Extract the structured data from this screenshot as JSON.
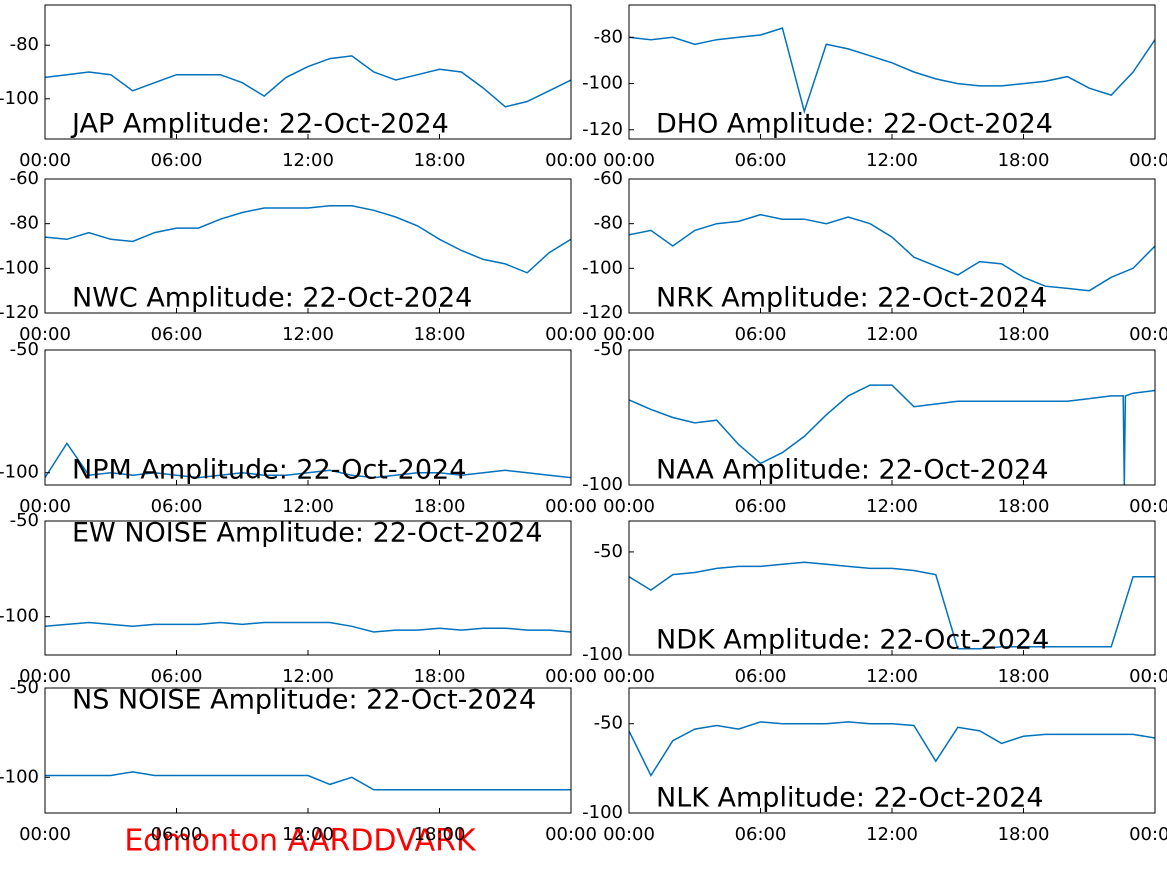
{
  "chart_data": [
    {
      "type": "line",
      "title": "JAP Amplitude: 22-Oct-2024",
      "label_corner": "lower left",
      "color": "#0072bd",
      "x": [
        0,
        1,
        2,
        3,
        4,
        5,
        6,
        7,
        8,
        9,
        10,
        11,
        12,
        13,
        14,
        15,
        16,
        17,
        18,
        19,
        20,
        21,
        22,
        23,
        24
      ],
      "values": [
        -92,
        -91,
        -90,
        -91,
        -97,
        -94,
        -91,
        -91,
        -91,
        -94,
        -99,
        -92,
        -88,
        -85,
        -84,
        -90,
        -93,
        -91,
        -89,
        -90,
        -96,
        -103,
        -101,
        -97,
        -93
      ],
      "xlim": [
        0,
        24
      ],
      "xticks": [
        {
          "value": 0,
          "label": "00:00"
        },
        {
          "value": 6,
          "label": "06:00"
        },
        {
          "value": 12,
          "label": "12:00"
        },
        {
          "value": 18,
          "label": "18:00"
        },
        {
          "value": 24,
          "label": "00:00"
        }
      ],
      "ylim": [
        -115,
        -65
      ],
      "yticks": [
        -100,
        -80
      ]
    },
    {
      "type": "line",
      "title": "DHO Amplitude: 22-Oct-2024",
      "label_corner": "lower left",
      "color": "#0072bd",
      "x": [
        0,
        1,
        2,
        3,
        4,
        5,
        6,
        7,
        8,
        9,
        10,
        11,
        12,
        13,
        14,
        15,
        16,
        17,
        18,
        19,
        20,
        21,
        22,
        23,
        24
      ],
      "values": [
        -80,
        -81,
        -80,
        -83,
        -81,
        -80,
        -79,
        -76,
        -112,
        -83,
        -85,
        -88,
        -91,
        -95,
        -98,
        -100,
        -101,
        -101,
        -100,
        -99,
        -97,
        -102,
        -105,
        -95,
        -81
      ],
      "xlim": [
        0,
        24
      ],
      "xticks": [
        {
          "value": 0,
          "label": "00:00"
        },
        {
          "value": 6,
          "label": "06:00"
        },
        {
          "value": 12,
          "label": "12:00"
        },
        {
          "value": 18,
          "label": "18:00"
        },
        {
          "value": 24,
          "label": "00:00"
        }
      ],
      "ylim": [
        -124,
        -66
      ],
      "yticks": [
        -120,
        -100,
        -80
      ]
    },
    {
      "type": "line",
      "title": "NWC Amplitude: 22-Oct-2024",
      "label_corner": "lower left",
      "color": "#0072bd",
      "x": [
        0,
        1,
        2,
        3,
        4,
        5,
        6,
        7,
        8,
        9,
        10,
        11,
        12,
        13,
        14,
        15,
        16,
        17,
        18,
        19,
        20,
        21,
        22,
        23,
        24
      ],
      "values": [
        -86,
        -87,
        -84,
        -87,
        -88,
        -84,
        -82,
        -82,
        -78,
        -75,
        -73,
        -73,
        -73,
        -72,
        -72,
        -74,
        -77,
        -81,
        -87,
        -92,
        -96,
        -98,
        -102,
        -93,
        -87
      ],
      "xlim": [
        0,
        24
      ],
      "xticks": [
        {
          "value": 0,
          "label": "00:00"
        },
        {
          "value": 6,
          "label": "06:00"
        },
        {
          "value": 12,
          "label": "12:00"
        },
        {
          "value": 18,
          "label": "18:00"
        },
        {
          "value": 24,
          "label": "00:00"
        }
      ],
      "ylim": [
        -120,
        -60
      ],
      "yticks": [
        -120,
        -100,
        -80,
        -60
      ]
    },
    {
      "type": "line",
      "title": "NRK Amplitude: 22-Oct-2024",
      "label_corner": "lower left",
      "color": "#0072bd",
      "x": [
        0,
        1,
        2,
        3,
        4,
        5,
        6,
        7,
        8,
        9,
        10,
        11,
        12,
        13,
        14,
        15,
        16,
        17,
        18,
        19,
        20,
        21,
        22,
        23,
        24
      ],
      "values": [
        -85,
        -83,
        -90,
        -83,
        -80,
        -79,
        -76,
        -78,
        -78,
        -80,
        -77,
        -80,
        -86,
        -95,
        -99,
        -103,
        -97,
        -98,
        -104,
        -108,
        -109,
        -110,
        -104,
        -100,
        -90
      ],
      "xlim": [
        0,
        24
      ],
      "xticks": [
        {
          "value": 0,
          "label": "00:00"
        },
        {
          "value": 6,
          "label": "06:00"
        },
        {
          "value": 12,
          "label": "12:00"
        },
        {
          "value": 18,
          "label": "18:00"
        },
        {
          "value": 24,
          "label": "00:00"
        }
      ],
      "ylim": [
        -120,
        -60
      ],
      "yticks": [
        -120,
        -100,
        -80,
        -60
      ]
    },
    {
      "type": "line",
      "title": "NPM Amplitude: 22-Oct-2024",
      "label_corner": "lower left",
      "color": "#0072bd",
      "x": [
        0,
        1,
        2,
        3,
        4,
        5,
        6,
        7,
        8,
        9,
        10,
        11,
        12,
        13,
        14,
        15,
        16,
        17,
        18,
        19,
        20,
        21,
        22,
        23,
        24
      ],
      "values": [
        -102,
        -88,
        -101,
        -100,
        -101,
        -100,
        -101,
        -102,
        -101,
        -100,
        -101,
        -101,
        -100,
        -99,
        -101,
        -102,
        -101,
        -100,
        -100,
        -101,
        -100,
        -99,
        -100,
        -101,
        -102
      ],
      "xlim": [
        0,
        24
      ],
      "xticks": [
        {
          "value": 0,
          "label": "00:00"
        },
        {
          "value": 6,
          "label": "06:00"
        },
        {
          "value": 12,
          "label": "12:00"
        },
        {
          "value": 18,
          "label": "18:00"
        },
        {
          "value": 24,
          "label": "00:00"
        }
      ],
      "ylim": [
        -105,
        -50
      ],
      "yticks": [
        -100,
        -50
      ]
    },
    {
      "type": "line",
      "title": "NAA Amplitude: 22-Oct-2024",
      "label_corner": "lower left",
      "color": "#0072bd",
      "x": [
        0,
        1,
        2,
        3,
        4,
        5,
        6,
        7,
        8,
        9,
        10,
        11,
        12,
        13,
        14,
        15,
        16,
        17,
        18,
        19,
        20,
        21,
        22,
        22.55,
        22.6,
        22.65,
        23,
        24
      ],
      "values": [
        -68.5,
        -72,
        -75,
        -77,
        -76,
        -85,
        -92,
        -88,
        -82,
        -74,
        -67,
        -63,
        -63,
        -71,
        -70,
        -69,
        -69,
        -69,
        -69,
        -69,
        -69,
        -68,
        -67,
        -67,
        -100,
        -67,
        -66,
        -65
      ],
      "xlim": [
        0,
        24
      ],
      "xticks": [
        {
          "value": 0,
          "label": "00:00"
        },
        {
          "value": 6,
          "label": "06:00"
        },
        {
          "value": 12,
          "label": "12:00"
        },
        {
          "value": 18,
          "label": "18:00"
        },
        {
          "value": 24,
          "label": "00:00"
        }
      ],
      "ylim": [
        -100,
        -50
      ],
      "yticks": [
        -100,
        -50
      ]
    },
    {
      "type": "line",
      "title": "EW NOISE Amplitude: 22-Oct-2024",
      "label_corner": "upper left",
      "color": "#0072bd",
      "x": [
        0,
        1,
        2,
        3,
        4,
        5,
        6,
        7,
        8,
        9,
        10,
        11,
        12,
        13,
        14,
        15,
        16,
        17,
        18,
        19,
        20,
        21,
        22,
        23,
        24
      ],
      "values": [
        -105,
        -104,
        -103,
        -104,
        -105,
        -104,
        -104,
        -104,
        -103,
        -104,
        -103,
        -103,
        -103,
        -103,
        -105,
        -108,
        -107,
        -107,
        -106,
        -107,
        -106,
        -106,
        -107,
        -107,
        -108
      ],
      "xlim": [
        0,
        24
      ],
      "xticks": [
        {
          "value": 0,
          "label": "00:00"
        },
        {
          "value": 6,
          "label": "06:00"
        },
        {
          "value": 12,
          "label": "12:00"
        },
        {
          "value": 18,
          "label": "18:00"
        },
        {
          "value": 24,
          "label": "00:00"
        }
      ],
      "ylim": [
        -120,
        -50
      ],
      "yticks": [
        -100,
        -50
      ]
    },
    {
      "type": "line",
      "title": "NDK Amplitude: 22-Oct-2024",
      "label_corner": "lower left",
      "color": "#0072bd",
      "x": [
        0,
        1,
        2,
        3,
        4,
        5,
        6,
        7,
        8,
        9,
        10,
        11,
        12,
        13,
        14,
        15,
        16,
        17,
        18,
        19,
        20,
        21,
        22,
        23,
        24
      ],
      "values": [
        -62,
        -68.5,
        -61,
        -60,
        -58,
        -57,
        -57,
        -56,
        -55,
        -56,
        -57,
        -58,
        -58,
        -59,
        -61,
        -97,
        -97,
        -96,
        -96,
        -96,
        -96,
        -96,
        -96,
        -62,
        -62
      ],
      "xlim": [
        0,
        24
      ],
      "xticks": [
        {
          "value": 0,
          "label": "00:00"
        },
        {
          "value": 6,
          "label": "06:00"
        },
        {
          "value": 12,
          "label": "12:00"
        },
        {
          "value": 18,
          "label": "18:00"
        },
        {
          "value": 24,
          "label": "00:00"
        }
      ],
      "ylim": [
        -100,
        -35
      ],
      "yticks": [
        -100,
        -50
      ]
    },
    {
      "type": "line",
      "title": "NS NOISE Amplitude: 22-Oct-2024",
      "label_corner": "upper left",
      "color": "#0072bd",
      "x": [
        0,
        1,
        2,
        3,
        4,
        5,
        6,
        7,
        8,
        9,
        10,
        11,
        12,
        13,
        14,
        15,
        16,
        17,
        18,
        19,
        20,
        21,
        22,
        23,
        24
      ],
      "values": [
        -99,
        -99,
        -99,
        -99,
        -97,
        -99,
        -99,
        -99,
        -99,
        -99,
        -99,
        -99,
        -99,
        -104,
        -100,
        -107,
        -107,
        -107,
        -107,
        -107,
        -107,
        -107,
        -107,
        -107,
        -107
      ],
      "xlim": [
        0,
        24
      ],
      "xticks": [
        {
          "value": 0,
          "label": "00:00"
        },
        {
          "value": 6,
          "label": "06:00"
        },
        {
          "value": 12,
          "label": "12:00"
        },
        {
          "value": 18,
          "label": "18:00"
        },
        {
          "value": 24,
          "label": "00:00"
        }
      ],
      "ylim": [
        -120,
        -50
      ],
      "yticks": [
        -100,
        -50
      ]
    },
    {
      "type": "line",
      "title": "NLK Amplitude: 22-Oct-2024",
      "label_corner": "lower left",
      "color": "#0072bd",
      "x": [
        0,
        1,
        2,
        3,
        4,
        5,
        6,
        7,
        8,
        9,
        10,
        11,
        12,
        13,
        14,
        15,
        16,
        17,
        18,
        19,
        20,
        21,
        22,
        23,
        24
      ],
      "values": [
        -54,
        -79,
        -59.5,
        -53,
        -51,
        -53,
        -49,
        -50,
        -50,
        -50,
        -49,
        -50,
        -50,
        -51,
        -71,
        -52,
        -54,
        -61,
        -57,
        -56,
        -56,
        -56,
        -56,
        -56,
        -58
      ],
      "xlim": [
        0,
        24
      ],
      "xticks": [
        {
          "value": 0,
          "label": "00:00"
        },
        {
          "value": 6,
          "label": "06:00"
        },
        {
          "value": 12,
          "label": "12:00"
        },
        {
          "value": 18,
          "label": "18:00"
        },
        {
          "value": 24,
          "label": "00:00"
        }
      ],
      "ylim": [
        -100,
        -30
      ],
      "yticks": [
        -100,
        -50
      ]
    }
  ],
  "footer": "Edmonton AARDDVARK"
}
